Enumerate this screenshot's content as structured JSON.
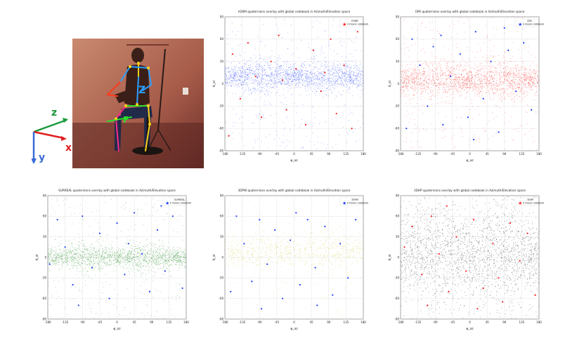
{
  "figure": {
    "axis_label": "Z",
    "axis_glyphs": {
      "z": "z",
      "x": "x",
      "y": "y"
    },
    "joint_label": "F"
  },
  "style": {
    "sample_colors": [
      "#1f3cff",
      "#ff1a1a",
      "#2a8a2a",
      "#c8c020",
      "#111111"
    ],
    "codebook_marker_colors": [
      "#ff1a1a",
      "#1f3cff",
      "#1f3cff",
      "#1f3cff",
      "#ff1a1a"
    ],
    "grid": true,
    "legend_position": "top-right"
  },
  "chart_data": [
    {
      "type": "scatter",
      "title": "H36M quaternions overlay with global codebook in Azimuth/Elevation space",
      "legend_series": "H36M",
      "legend_codebook": "k-means codebook",
      "xlabel": "φ_az",
      "ylabel": "θ_el",
      "xlim": [
        -180,
        180
      ],
      "ylim": [
        -90,
        90
      ],
      "xticks": [
        -180,
        -135,
        -90,
        -45,
        0,
        45,
        90,
        135,
        180
      ],
      "yticks": [
        -90,
        -60,
        -30,
        0,
        30,
        60,
        90
      ],
      "sample_band": {
        "center": 10,
        "spread": 12
      },
      "codebook_points": [
        [
          -160,
          40
        ],
        [
          -140,
          -20
        ],
        [
          -120,
          55
        ],
        [
          -100,
          10
        ],
        [
          -85,
          -45
        ],
        [
          -60,
          30
        ],
        [
          -40,
          65
        ],
        [
          -20,
          -35
        ],
        [
          5,
          20
        ],
        [
          30,
          -55
        ],
        [
          50,
          45
        ],
        [
          70,
          -10
        ],
        [
          95,
          60
        ],
        [
          110,
          -40
        ],
        [
          130,
          25
        ],
        [
          150,
          -60
        ],
        [
          165,
          70
        ],
        [
          -170,
          -70
        ],
        [
          -30,
          5
        ],
        [
          80,
          15
        ]
      ]
    },
    {
      "type": "scatter",
      "title": "GPA quaternions overlay with global codebook in Azimuth/Elevation space",
      "legend_series": "GPA",
      "legend_codebook": "k-means codebook",
      "xlabel": "φ_az",
      "ylabel": "θ_el",
      "xlim": [
        -180,
        180
      ],
      "ylim": [
        -90,
        90
      ],
      "xticks": [
        -180,
        -135,
        -90,
        -45,
        0,
        45,
        90,
        135,
        180
      ],
      "yticks": [
        -90,
        -60,
        -30,
        0,
        30,
        60,
        90
      ],
      "sample_band": {
        "center": 5,
        "spread": 14
      },
      "codebook_points": [
        [
          -150,
          60
        ],
        [
          -130,
          25
        ],
        [
          -110,
          -30
        ],
        [
          -95,
          50
        ],
        [
          -70,
          -55
        ],
        [
          -50,
          10
        ],
        [
          -25,
          40
        ],
        [
          -5,
          -45
        ],
        [
          15,
          70
        ],
        [
          35,
          -20
        ],
        [
          55,
          30
        ],
        [
          75,
          -65
        ],
        [
          100,
          45
        ],
        [
          120,
          -10
        ],
        [
          140,
          55
        ],
        [
          160,
          -35
        ],
        [
          -165,
          -60
        ],
        [
          10,
          -75
        ],
        [
          90,
          75
        ],
        [
          -75,
          65
        ]
      ]
    },
    {
      "type": "scatter",
      "title": "SURREAL quaternions overlay with global codebook in Azimuth/Elevation space",
      "legend_series": "SURREAL",
      "legend_codebook": "k-means codebook",
      "xlabel": "φ_az",
      "ylabel": "θ_el",
      "xlim": [
        -180,
        180
      ],
      "ylim": [
        -90,
        90
      ],
      "xticks": [
        -180,
        -135,
        -90,
        -45,
        0,
        45,
        90,
        135,
        180
      ],
      "yticks": [
        -90,
        -60,
        -30,
        0,
        30,
        60,
        90
      ],
      "sample_band": {
        "center": 0,
        "spread": 10
      },
      "codebook_points": [
        [
          -155,
          55
        ],
        [
          -135,
          15
        ],
        [
          -115,
          -40
        ],
        [
          -90,
          60
        ],
        [
          -65,
          -15
        ],
        [
          -45,
          35
        ],
        [
          -20,
          -60
        ],
        [
          0,
          50
        ],
        [
          20,
          -25
        ],
        [
          45,
          65
        ],
        [
          65,
          5
        ],
        [
          85,
          -50
        ],
        [
          105,
          40
        ],
        [
          125,
          -20
        ],
        [
          145,
          60
        ],
        [
          170,
          -45
        ],
        [
          -175,
          -10
        ],
        [
          30,
          20
        ],
        [
          -100,
          -70
        ],
        [
          115,
          75
        ]
      ]
    },
    {
      "type": "scatter",
      "title": "3DPW quaternions overlay with global codebook in Azimuth/Elevation space",
      "legend_series": "3DPW",
      "legend_codebook": "k-means codebook",
      "xlabel": "φ_az",
      "ylabel": "θ_el",
      "xlim": [
        -180,
        180
      ],
      "ylim": [
        -90,
        90
      ],
      "xticks": [
        -180,
        -135,
        -90,
        -45,
        0,
        45,
        90,
        135,
        180
      ],
      "yticks": [
        -90,
        -60,
        -30,
        0,
        30,
        60,
        90
      ],
      "sample_band": {
        "center": 10,
        "spread": 15
      },
      "codebook_points": [
        [
          -150,
          60
        ],
        [
          -130,
          20
        ],
        [
          -110,
          -35
        ],
        [
          -90,
          55
        ],
        [
          -70,
          -10
        ],
        [
          -50,
          40
        ],
        [
          -30,
          -60
        ],
        [
          -10,
          25
        ],
        [
          15,
          -40
        ],
        [
          35,
          55
        ],
        [
          55,
          -15
        ],
        [
          80,
          45
        ],
        [
          100,
          -55
        ],
        [
          120,
          20
        ],
        [
          140,
          -30
        ],
        [
          160,
          55
        ],
        [
          -165,
          -50
        ],
        [
          5,
          65
        ],
        [
          60,
          -70
        ],
        [
          -85,
          -75
        ]
      ]
    },
    {
      "type": "scatter",
      "title": "3DHP quaternions overlay with global codebook in Azimuth/Elevation space",
      "legend_series": "3DHP",
      "legend_codebook": "k-means codebook",
      "xlabel": "φ_az",
      "ylabel": "θ_el",
      "xlim": [
        -180,
        180
      ],
      "ylim": [
        -90,
        90
      ],
      "xticks": [
        -180,
        -135,
        -90,
        -45,
        0,
        45,
        90,
        135,
        180
      ],
      "yticks": [
        -90,
        -60,
        -30,
        0,
        30,
        60,
        90
      ],
      "sample_band": {
        "center": 5,
        "spread": 38
      },
      "codebook_points": [
        [
          -150,
          45
        ],
        [
          -125,
          -25
        ],
        [
          -100,
          60
        ],
        [
          -80,
          5
        ],
        [
          -55,
          -50
        ],
        [
          -35,
          30
        ],
        [
          -10,
          -20
        ],
        [
          10,
          55
        ],
        [
          35,
          -45
        ],
        [
          60,
          20
        ],
        [
          85,
          -65
        ],
        [
          105,
          50
        ],
        [
          130,
          -5
        ],
        [
          150,
          35
        ],
        [
          170,
          -55
        ],
        [
          -170,
          15
        ],
        [
          -60,
          75
        ],
        [
          75,
          -30
        ],
        [
          20,
          -75
        ],
        [
          -110,
          -70
        ]
      ]
    }
  ]
}
